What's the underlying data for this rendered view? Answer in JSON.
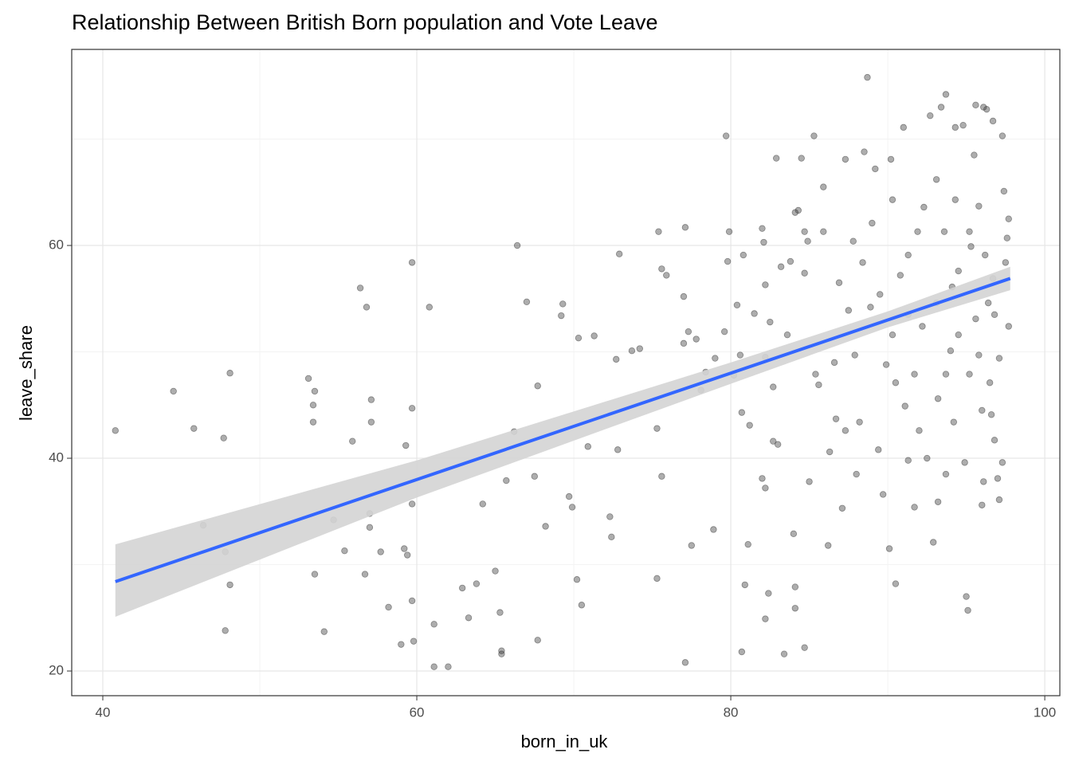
{
  "chart_data": {
    "type": "scatter",
    "title": "Relationship Between British Born population and Vote Leave",
    "x_label": "born_in_uk",
    "y_label": "leave_share",
    "xlim": [
      38.02,
      100.96
    ],
    "ylim": [
      17.68,
      78.43
    ],
    "xticks": [
      40,
      60,
      80,
      100
    ],
    "yticks": [
      20,
      40,
      60
    ],
    "x_minor_grid": [
      50,
      70,
      90
    ],
    "y_minor_grid": [
      30,
      50,
      70
    ],
    "grid": true,
    "points": {
      "color": "#333333",
      "x": [
        40.8,
        44.5,
        45.8,
        46.4,
        47.7,
        47.8,
        48.1,
        48.1,
        47.8,
        53.1,
        53.5,
        53.4,
        53.4,
        53.5,
        54.1,
        54.7,
        55.4,
        55.9,
        56.4,
        56.8,
        57.1,
        57.1,
        57.0,
        57.0,
        56.7,
        57.7,
        58.2,
        59.0,
        59.3,
        59.2,
        59.4,
        59.7,
        59.7,
        59.7,
        59.7,
        59.8,
        60.8,
        61.1,
        61.1,
        62.0,
        62.9,
        63.3,
        63.8,
        64.2,
        65.0,
        65.3,
        65.4,
        65.4,
        65.7,
        66.2,
        66.4,
        67.0,
        67.5,
        67.7,
        67.7,
        68.2,
        69.3,
        69.2,
        69.7,
        69.9,
        70.3,
        70.2,
        70.5,
        70.9,
        71.3,
        72.3,
        72.4,
        72.7,
        72.8,
        72.9,
        73.7,
        74.2,
        75.4,
        75.3,
        75.6,
        75.3,
        75.6,
        75.9,
        77.1,
        77.0,
        77.0,
        77.1,
        77.3,
        77.5,
        77.8,
        78.1,
        78.4,
        78.9,
        79.0,
        79.6,
        79.7,
        79.8,
        79.9,
        80.2,
        80.4,
        80.6,
        80.8,
        80.7,
        80.9,
        80.7,
        81.1,
        81.2,
        81.5,
        82.0,
        82.1,
        82.2,
        82.2,
        82.0,
        82.2,
        82.2,
        82.4,
        82.5,
        82.7,
        82.7,
        83.0,
        82.9,
        83.2,
        83.4,
        83.6,
        83.8,
        84.0,
        84.1,
        84.1,
        84.1,
        84.3,
        84.5,
        84.7,
        84.9,
        84.7,
        84.7,
        85.0,
        85.3,
        85.4,
        85.6,
        85.9,
        85.9,
        86.2,
        86.3,
        86.6,
        86.7,
        86.9,
        87.1,
        87.3,
        87.5,
        87.8,
        87.9,
        88.0,
        88.2,
        88.5,
        88.7,
        88.4,
        88.9,
        89.2,
        89.4,
        89.7,
        89.9,
        90.1,
        90.2,
        90.5,
        90.8,
        91.0,
        91.3,
        91.1,
        91.3,
        91.7,
        91.9,
        92.2,
        92.5,
        92.7,
        92.9,
        93.1,
        93.2,
        93.4,
        93.7,
        93.6,
        93.7,
        94.0,
        94.2,
        94.3,
        94.5,
        94.8,
        94.9,
        95.0,
        95.1,
        95.3,
        95.5,
        95.6,
        95.8,
        96.1,
        96.3,
        96.1,
        96.0,
        96.4,
        96.7,
        96.6,
        96.8,
        97.0,
        97.1,
        97.3,
        97.4,
        97.6,
        97.7,
        97.5,
        97.7,
        97.1,
        97.3,
        96.5,
        95.6,
        94.5,
        95.2,
        93.2,
        91.7,
        90.3,
        89.5,
        91.3,
        93.1,
        94.3,
        92.3,
        90.3,
        89.0,
        96.2,
        96.7,
        94.1,
        95.2,
        95.8,
        87.3,
        90.5,
        92.0,
        93.7,
        96.0,
        96.8
      ],
      "y": [
        42.6,
        46.3,
        42.8,
        33.7,
        41.9,
        31.2,
        48.0,
        28.1,
        23.8,
        47.5,
        46.3,
        45.0,
        43.4,
        29.1,
        23.7,
        34.2,
        31.3,
        41.6,
        56.0,
        54.2,
        45.5,
        43.4,
        34.8,
        33.5,
        29.1,
        31.2,
        26.0,
        22.5,
        41.2,
        31.5,
        30.9,
        58.4,
        44.7,
        35.7,
        26.6,
        22.8,
        54.2,
        20.4,
        24.4,
        20.4,
        27.8,
        25.0,
        28.2,
        35.7,
        29.4,
        25.5,
        21.9,
        21.6,
        37.9,
        42.5,
        60.0,
        54.7,
        38.3,
        46.8,
        22.9,
        33.6,
        54.5,
        53.4,
        36.4,
        35.4,
        51.3,
        28.6,
        26.2,
        41.1,
        51.5,
        34.5,
        32.6,
        49.3,
        40.8,
        59.2,
        50.1,
        50.3,
        61.3,
        42.8,
        38.3,
        28.7,
        57.8,
        57.2,
        61.7,
        55.2,
        50.8,
        20.8,
        51.9,
        31.8,
        51.2,
        46.4,
        48.1,
        33.3,
        49.4,
        51.9,
        70.3,
        58.5,
        61.3,
        47.8,
        54.4,
        49.7,
        59.1,
        44.3,
        28.1,
        21.8,
        31.9,
        43.1,
        53.6,
        61.6,
        60.3,
        56.3,
        49.5,
        38.1,
        37.2,
        24.9,
        27.3,
        52.8,
        46.7,
        41.6,
        41.3,
        68.2,
        58.0,
        21.6,
        51.6,
        58.5,
        32.9,
        27.9,
        25.9,
        63.1,
        63.3,
        68.2,
        61.3,
        60.4,
        57.4,
        22.2,
        37.8,
        70.3,
        47.9,
        46.9,
        61.3,
        65.5,
        31.8,
        40.6,
        49.0,
        43.7,
        56.5,
        35.3,
        68.1,
        53.9,
        60.4,
        49.7,
        38.5,
        43.4,
        68.8,
        75.8,
        58.4,
        54.2,
        67.2,
        40.8,
        36.6,
        48.8,
        31.5,
        68.1,
        28.2,
        57.2,
        71.1,
        53.5,
        44.9,
        39.8,
        35.4,
        61.3,
        52.4,
        40.0,
        72.2,
        32.1,
        66.2,
        35.9,
        73.0,
        74.2,
        61.3,
        38.5,
        50.1,
        43.4,
        71.1,
        57.6,
        71.3,
        39.6,
        27.0,
        25.7,
        59.9,
        68.5,
        73.2,
        63.7,
        73.0,
        72.8,
        37.8,
        35.6,
        54.6,
        71.7,
        44.1,
        41.7,
        38.1,
        36.1,
        70.3,
        65.1,
        60.7,
        52.4,
        58.4,
        62.5,
        49.4,
        39.6,
        47.1,
        53.1,
        51.6,
        47.9,
        45.6,
        47.9,
        51.6,
        55.4,
        59.1,
        54.6,
        64.3,
        63.6,
        64.3,
        62.1,
        59.1,
        56.9,
        56.1,
        61.3,
        49.7,
        42.6,
        47.1,
        42.6,
        47.9,
        44.5,
        53.5
      ]
    },
    "band": {
      "color": "#d4d4d4",
      "x": [
        40.8,
        60,
        80,
        90,
        97.8
      ],
      "lower": [
        25.1,
        36.3,
        47.0,
        52.3,
        55.8
      ],
      "upper": [
        31.9,
        39.8,
        49.0,
        53.8,
        58.0
      ]
    },
    "fit": {
      "color": "#3366ff",
      "x": [
        40.8,
        97.8
      ],
      "y": [
        28.4,
        56.9
      ]
    }
  }
}
